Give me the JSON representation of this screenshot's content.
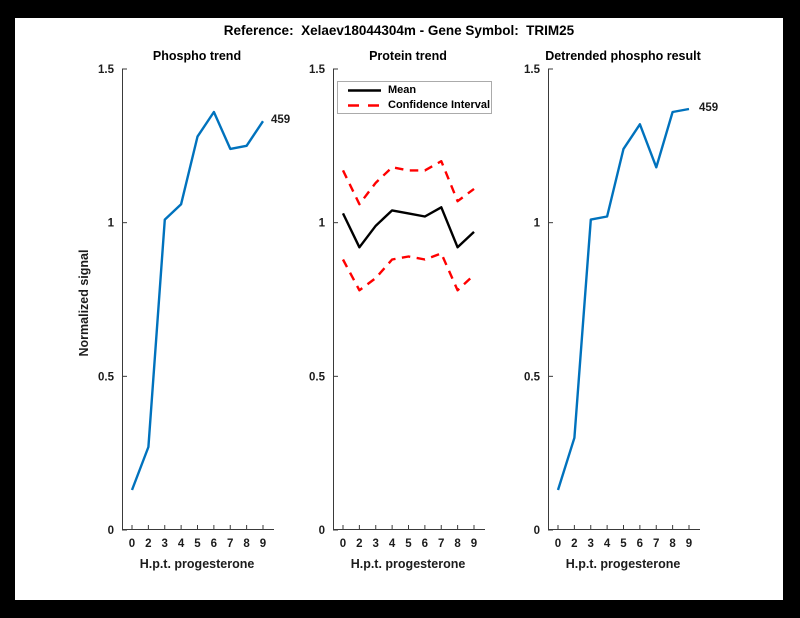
{
  "figure": {
    "title": "Reference:  Xelaev18044304m - Gene Symbol:  TRIM25"
  },
  "colors": {
    "frame_background": "#000000",
    "canvas_background": "#ffffff",
    "blue_line": "#0072BD",
    "red_dashed": "#ff0000",
    "mean_line": "#000000",
    "axis_line": "#3a3a3a",
    "label_text": "#1c1c1c",
    "legend_border": "#ababab"
  },
  "legend": {
    "entries": [
      {
        "label": "Mean",
        "style": "solid",
        "color": "#000000"
      },
      {
        "label": "Confidence Interval",
        "style": "dashed",
        "color": "#ff0000"
      }
    ]
  },
  "chart_data": [
    {
      "type": "line",
      "title": "Phospho trend",
      "xlabel": "H.p.t. progesterone",
      "ylabel": "Normalized signal",
      "x_tick_labels": [
        "0",
        "2",
        "3",
        "4",
        "5",
        "6",
        "7",
        "8",
        "9"
      ],
      "y_tick_labels": [
        "0",
        "0.5",
        "1",
        "1.5"
      ],
      "y_tick_values": [
        0,
        0.5,
        1,
        1.5
      ],
      "ylim": [
        0,
        1.5
      ],
      "grid": false,
      "legend_position": "none",
      "series": [
        {
          "name": "phospho-signal",
          "color": "#0072BD",
          "style": "solid",
          "x": [
            0,
            2,
            3,
            4,
            5,
            6,
            7,
            8,
            9
          ],
          "values": [
            0.13,
            0.27,
            1.01,
            1.06,
            1.28,
            1.36,
            1.24,
            1.25,
            1.33
          ]
        }
      ],
      "annotation": "459"
    },
    {
      "type": "line",
      "title": "Protein trend",
      "xlabel": "H.p.t. progesterone",
      "ylabel": "",
      "x_tick_labels": [
        "0",
        "2",
        "3",
        "4",
        "5",
        "6",
        "7",
        "8",
        "9"
      ],
      "y_tick_labels": [
        "0",
        "0.5",
        "1",
        "1.5"
      ],
      "y_tick_values": [
        0,
        0.5,
        1,
        1.5
      ],
      "ylim": [
        0,
        1.5
      ],
      "grid": false,
      "legend_position": "northwest",
      "series": [
        {
          "name": "mean",
          "color": "#000000",
          "style": "solid",
          "x": [
            0,
            2,
            3,
            4,
            5,
            6,
            7,
            8,
            9
          ],
          "values": [
            1.03,
            0.92,
            0.99,
            1.04,
            1.03,
            1.02,
            1.05,
            0.92,
            0.97
          ]
        },
        {
          "name": "confidence-upper",
          "color": "#ff0000",
          "style": "dashed",
          "x": [
            0,
            2,
            3,
            4,
            5,
            6,
            7,
            8,
            9
          ],
          "values": [
            1.17,
            1.06,
            1.13,
            1.18,
            1.17,
            1.17,
            1.2,
            1.07,
            1.11
          ]
        },
        {
          "name": "confidence-lower",
          "color": "#ff0000",
          "style": "dashed",
          "x": [
            0,
            2,
            3,
            4,
            5,
            6,
            7,
            8,
            9
          ],
          "values": [
            0.88,
            0.78,
            0.82,
            0.88,
            0.89,
            0.88,
            0.9,
            0.78,
            0.83
          ]
        }
      ],
      "annotation": ""
    },
    {
      "type": "line",
      "title": "Detrended phospho result",
      "xlabel": "H.p.t. progesterone",
      "ylabel": "",
      "x_tick_labels": [
        "0",
        "2",
        "3",
        "4",
        "5",
        "6",
        "7",
        "8",
        "9"
      ],
      "y_tick_labels": [
        "0",
        "0.5",
        "1",
        "1.5"
      ],
      "y_tick_values": [
        0,
        0.5,
        1,
        1.5
      ],
      "ylim": [
        0,
        1.5
      ],
      "grid": false,
      "legend_position": "none",
      "series": [
        {
          "name": "detrended-phospho",
          "color": "#0072BD",
          "style": "solid",
          "x": [
            0,
            2,
            3,
            4,
            5,
            6,
            7,
            8,
            9
          ],
          "values": [
            0.13,
            0.3,
            1.01,
            1.02,
            1.24,
            1.32,
            1.18,
            1.36,
            1.37
          ]
        }
      ],
      "annotation": "459"
    }
  ]
}
